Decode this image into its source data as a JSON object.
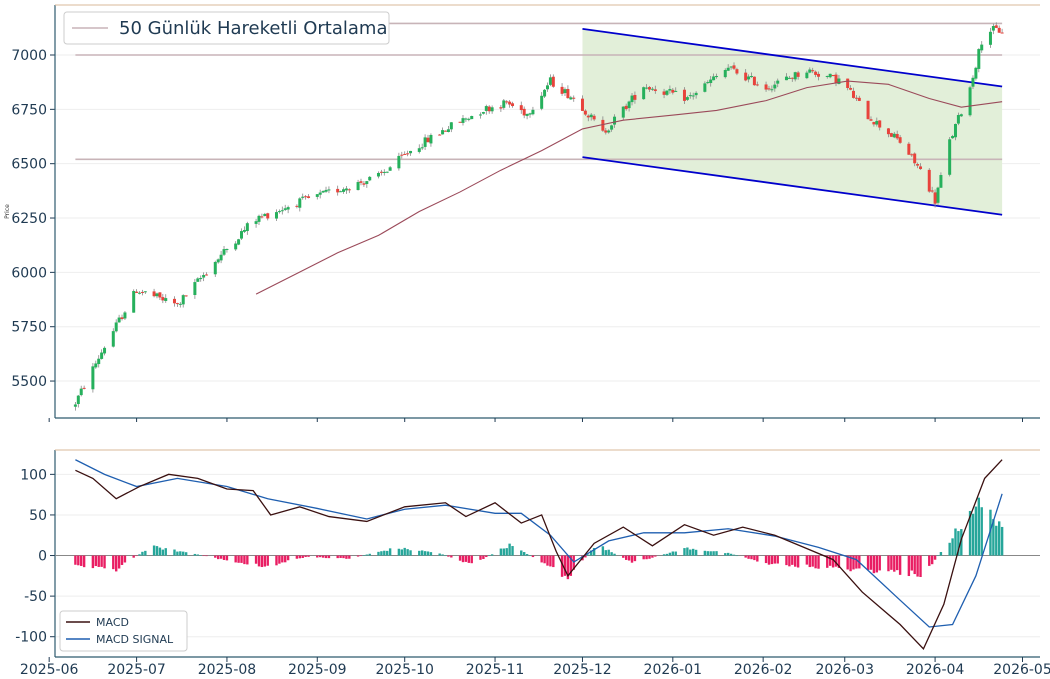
{
  "chart_data": [
    {
      "type": "candlestick",
      "ylabel": "Price",
      "legend": {
        "placement": "top-left",
        "entries": [
          "50 Günlük Hareketli Ortalama"
        ]
      },
      "ylim": [
        5330,
        7230
      ],
      "yticks": [
        5500,
        5750,
        6000,
        6250,
        6500,
        6750,
        7000
      ],
      "xlim": [
        "2025-06-03",
        "2026-05-07"
      ],
      "xticks": [
        "2025-06",
        "2025-07",
        "2025-08",
        "2025-09",
        "2025-10",
        "2025-11",
        "2025-12",
        "2026-01",
        "2026-02",
        "2026-03",
        "2026-04",
        "2026-05"
      ],
      "horizontal_levels": [
        6520,
        7000,
        7145
      ],
      "channel": {
        "start": "2025-12-01",
        "end": "2026-04-24",
        "upper": [
          7120,
          6855
        ],
        "lower": [
          6530,
          6265
        ],
        "fill": "#e2efd9",
        "line_color": "#0000cc"
      },
      "ma50": [
        [
          "2025-08-11",
          5900
        ],
        [
          "2025-08-25",
          5995
        ],
        [
          "2025-09-08",
          6090
        ],
        [
          "2025-09-22",
          6170
        ],
        [
          "2025-10-06",
          6280
        ],
        [
          "2025-10-20",
          6370
        ],
        [
          "2025-11-03",
          6470
        ],
        [
          "2025-11-17",
          6560
        ],
        [
          "2025-12-01",
          6660
        ],
        [
          "2025-12-15",
          6700
        ],
        [
          "2026-01-02",
          6725
        ],
        [
          "2026-01-16",
          6745
        ],
        [
          "2026-02-02",
          6790
        ],
        [
          "2026-02-16",
          6850
        ],
        [
          "2026-03-02",
          6880
        ],
        [
          "2026-03-16",
          6865
        ],
        [
          "2026-03-30",
          6800
        ],
        [
          "2026-04-10",
          6760
        ],
        [
          "2026-04-24",
          6785
        ]
      ],
      "up_color": "#26b05c",
      "down_color": "#e8433c",
      "ma_color": "#9b4a5a",
      "key_points": [
        [
          "2025-06-10",
          5400
        ],
        [
          "2025-06-20",
          5660
        ],
        [
          "2025-07-01",
          5920
        ],
        [
          "2025-07-15",
          5850
        ],
        [
          "2025-07-28",
          6050
        ],
        [
          "2025-08-10",
          6240
        ],
        [
          "2025-08-25",
          6320
        ],
        [
          "2025-09-08",
          6380
        ],
        [
          "2025-09-22",
          6440
        ],
        [
          "2025-10-03",
          6560
        ],
        [
          "2025-10-15",
          6660
        ],
        [
          "2025-10-28",
          6750
        ],
        [
          "2025-11-05",
          6780
        ],
        [
          "2025-11-12",
          6730
        ],
        [
          "2025-11-20",
          6880
        ],
        [
          "2025-11-30",
          6780
        ],
        [
          "2025-12-08",
          6640
        ],
        [
          "2025-12-22",
          6860
        ],
        [
          "2026-01-06",
          6800
        ],
        [
          "2026-01-20",
          6940
        ],
        [
          "2026-02-02",
          6850
        ],
        [
          "2026-02-16",
          6930
        ],
        [
          "2026-02-28",
          6880
        ],
        [
          "2026-03-09",
          6720
        ],
        [
          "2026-03-20",
          6600
        ],
        [
          "2026-03-28",
          6450
        ],
        [
          "2026-04-01",
          6330
        ],
        [
          "2026-04-06",
          6600
        ],
        [
          "2026-04-13",
          6850
        ],
        [
          "2026-04-18",
          7120
        ],
        [
          "2026-04-24",
          7110
        ]
      ]
    },
    {
      "type": "macd",
      "ylim": [
        -125,
        130
      ],
      "yticks": [
        -100,
        -50,
        0,
        50,
        100
      ],
      "legend": {
        "placement": "bottom-left",
        "entries": [
          "MACD",
          "MACD SIGNAL"
        ]
      },
      "macd_color": "#3a1010",
      "signal_color": "#1f5fb0",
      "hist_pos_color": "#26a69a",
      "hist_neg_color": "#e91e63",
      "macd": [
        [
          "2025-06-10",
          105
        ],
        [
          "2025-06-16",
          95
        ],
        [
          "2025-06-24",
          70
        ],
        [
          "2025-07-02",
          85
        ],
        [
          "2025-07-12",
          100
        ],
        [
          "2025-07-22",
          95
        ],
        [
          "2025-08-01",
          82
        ],
        [
          "2025-08-10",
          80
        ],
        [
          "2025-08-16",
          50
        ],
        [
          "2025-08-26",
          60
        ],
        [
          "2025-09-05",
          48
        ],
        [
          "2025-09-18",
          42
        ],
        [
          "2025-10-01",
          60
        ],
        [
          "2025-10-15",
          65
        ],
        [
          "2025-10-22",
          48
        ],
        [
          "2025-11-01",
          65
        ],
        [
          "2025-11-10",
          40
        ],
        [
          "2025-11-17",
          50
        ],
        [
          "2025-11-22",
          5
        ],
        [
          "2025-11-26",
          -25
        ],
        [
          "2025-12-05",
          15
        ],
        [
          "2025-12-15",
          35
        ],
        [
          "2025-12-25",
          12
        ],
        [
          "2026-01-05",
          38
        ],
        [
          "2026-01-15",
          25
        ],
        [
          "2026-01-25",
          35
        ],
        [
          "2026-02-05",
          25
        ],
        [
          "2026-02-15",
          10
        ],
        [
          "2026-02-25",
          -5
        ],
        [
          "2026-03-07",
          -45
        ],
        [
          "2026-03-20",
          -85
        ],
        [
          "2026-03-28",
          -115
        ],
        [
          "2026-04-04",
          -60
        ],
        [
          "2026-04-10",
          20
        ],
        [
          "2026-04-18",
          95
        ],
        [
          "2026-04-24",
          118
        ]
      ],
      "signal": [
        [
          "2025-06-10",
          118
        ],
        [
          "2025-06-20",
          100
        ],
        [
          "2025-07-01",
          85
        ],
        [
          "2025-07-15",
          95
        ],
        [
          "2025-08-01",
          85
        ],
        [
          "2025-08-15",
          70
        ],
        [
          "2025-09-01",
          58
        ],
        [
          "2025-09-18",
          45
        ],
        [
          "2025-10-01",
          57
        ],
        [
          "2025-10-15",
          62
        ],
        [
          "2025-11-01",
          52
        ],
        [
          "2025-11-10",
          52
        ],
        [
          "2025-11-20",
          25
        ],
        [
          "2025-11-28",
          -8
        ],
        [
          "2025-12-10",
          18
        ],
        [
          "2025-12-22",
          28
        ],
        [
          "2026-01-05",
          28
        ],
        [
          "2026-01-20",
          33
        ],
        [
          "2026-02-05",
          24
        ],
        [
          "2026-02-20",
          10
        ],
        [
          "2026-03-05",
          -5
        ],
        [
          "2026-03-20",
          -55
        ],
        [
          "2026-03-30",
          -88
        ],
        [
          "2026-04-07",
          -85
        ],
        [
          "2026-04-15",
          -25
        ],
        [
          "2026-04-24",
          76
        ]
      ],
      "histogram_envelope": [
        [
          "2025-06-10",
          -12
        ],
        [
          "2025-06-24",
          -18
        ],
        [
          "2025-07-06",
          12
        ],
        [
          "2025-07-20",
          3
        ],
        [
          "2025-08-03",
          -8
        ],
        [
          "2025-08-14",
          -15
        ],
        [
          "2025-08-28",
          -2
        ],
        [
          "2025-09-12",
          -4
        ],
        [
          "2025-09-28",
          10
        ],
        [
          "2025-10-12",
          4
        ],
        [
          "2025-10-24",
          -12
        ],
        [
          "2025-11-06",
          14
        ],
        [
          "2025-11-18",
          -10
        ],
        [
          "2025-11-26",
          -30
        ],
        [
          "2025-12-06",
          15
        ],
        [
          "2025-12-18",
          -10
        ],
        [
          "2026-01-06",
          10
        ],
        [
          "2026-01-20",
          3
        ],
        [
          "2026-02-04",
          -12
        ],
        [
          "2026-02-18",
          -15
        ],
        [
          "2026-03-04",
          -18
        ],
        [
          "2026-03-18",
          -22
        ],
        [
          "2026-03-28",
          -25
        ],
        [
          "2026-04-07",
          25
        ],
        [
          "2026-04-15",
          70
        ],
        [
          "2026-04-24",
          42
        ]
      ]
    }
  ]
}
